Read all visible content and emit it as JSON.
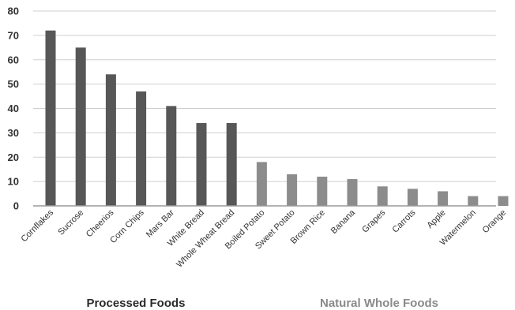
{
  "chart_data": {
    "type": "bar",
    "title": "",
    "xlabel": "",
    "ylabel": "",
    "ylim": [
      0,
      80
    ],
    "yticks": [
      0,
      10,
      20,
      30,
      40,
      50,
      60,
      70,
      80
    ],
    "grid": "horizontal",
    "categories": [
      "Cornflakes",
      "Sucrose",
      "Cheerios",
      "Corn Chips",
      "Mars Bar",
      "White Bread",
      "Whole Wheat Bread",
      "Boiled Potato",
      "Sweet Potato",
      "Brown Rice",
      "Banana",
      "Grapes",
      "Carrots",
      "Apple",
      "Watermelon",
      "Orange"
    ],
    "values": [
      72,
      65,
      54,
      47,
      41,
      34,
      34,
      18,
      13,
      12,
      11,
      8,
      7,
      6,
      4,
      4
    ],
    "groups": [
      {
        "label": "Processed Foods",
        "start": 0,
        "end": 6,
        "color": "#575757",
        "label_color": "#2b2b2b"
      },
      {
        "label": "Natural Whole Foods",
        "start": 7,
        "end": 15,
        "color": "#8c8c8c",
        "label_color": "#8a8a8a"
      }
    ]
  }
}
